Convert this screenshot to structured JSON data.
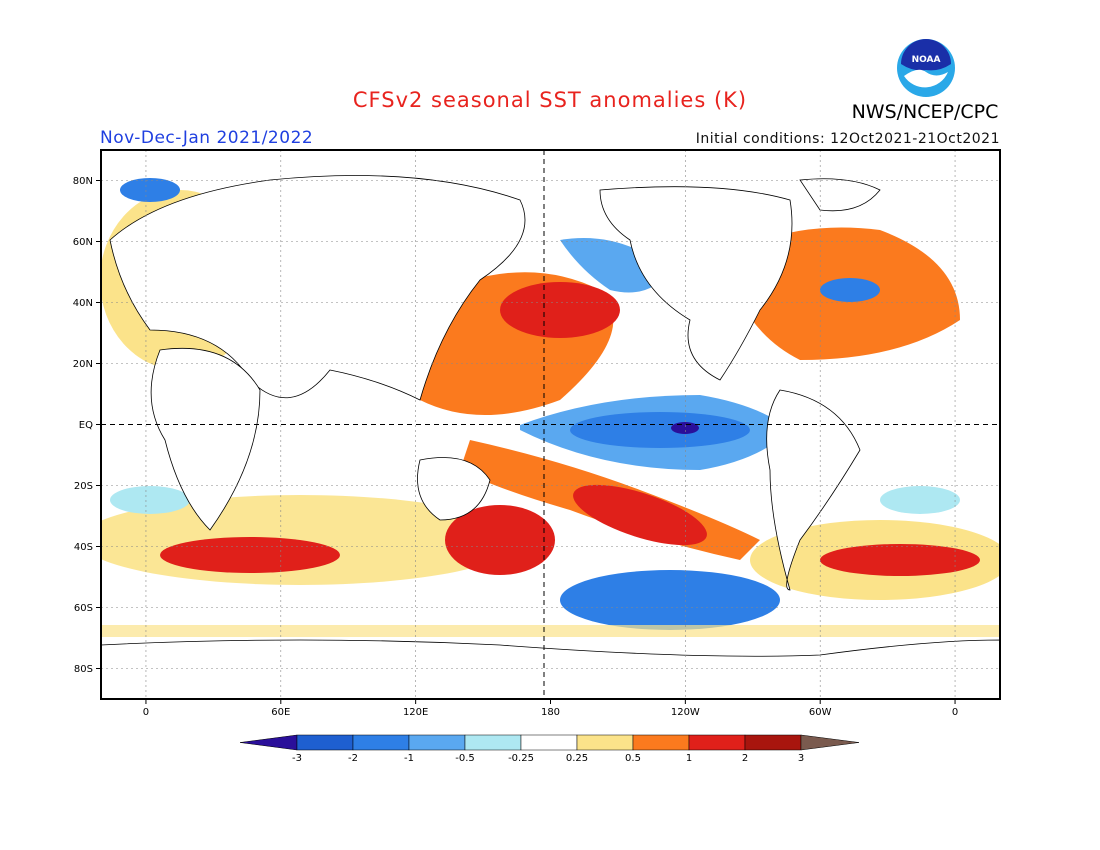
{
  "header": {
    "title": "CFSv2 seasonal SST anomalies (K)",
    "agency": "NWS/NCEP/CPC",
    "logo_text": "NOAA",
    "period": "Nov-Dec-Jan 2021/2022",
    "initial_conditions": "Initial conditions: 12Oct2021-21Oct2021"
  },
  "map": {
    "lat_labels": [
      "80N",
      "60N",
      "40N",
      "20N",
      "EQ",
      "20S",
      "40S",
      "60S",
      "80S"
    ],
    "lon_labels": [
      "0",
      "60E",
      "120E",
      "180",
      "120W",
      "60W",
      "0"
    ]
  },
  "colorbar": {
    "labels": [
      "-3",
      "-2",
      "-1",
      "-0.5",
      "-0.25",
      "0.25",
      "0.5",
      "1",
      "2",
      "3"
    ],
    "colors": [
      "#2a0f9a",
      "#1e5fd0",
      "#2e7fe6",
      "#5aa8f0",
      "#aee8f2",
      "#ffffff",
      "#fbe38a",
      "#fb7a1e",
      "#e0201a",
      "#a8150e",
      "#7a5a4e"
    ]
  }
}
